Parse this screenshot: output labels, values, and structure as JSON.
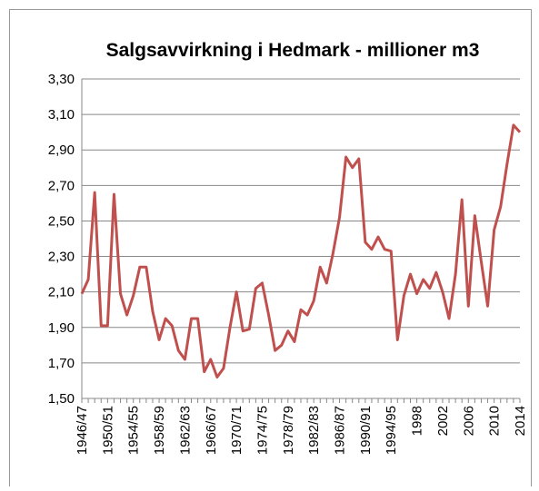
{
  "chart_data": {
    "type": "line",
    "title": "Salgsavvirkning i Hedmark  - millioner m3",
    "categories": [
      "1946/47",
      null,
      null,
      null,
      "1950/51",
      null,
      null,
      null,
      "1954/55",
      null,
      null,
      null,
      "1958/59",
      null,
      null,
      null,
      "1962/63",
      null,
      null,
      null,
      "1966/67",
      null,
      null,
      null,
      "1970/71",
      null,
      null,
      null,
      "1974/75",
      null,
      null,
      null,
      "1978/79",
      null,
      null,
      null,
      "1982/83",
      null,
      null,
      null,
      "1986/87",
      null,
      null,
      null,
      "1990/91",
      null,
      null,
      null,
      "1994/95",
      null,
      null,
      null,
      "1998",
      null,
      null,
      null,
      "2002",
      null,
      null,
      null,
      "2006",
      null,
      null,
      null,
      "2010",
      null,
      null,
      null,
      "2014"
    ],
    "series": [
      {
        "color": "#c0504d",
        "values": [
          2.09,
          2.17,
          2.66,
          1.91,
          1.91,
          2.65,
          2.09,
          1.97,
          2.08,
          2.24,
          2.24,
          1.99,
          1.83,
          1.95,
          1.91,
          1.77,
          1.72,
          1.95,
          1.95,
          1.65,
          1.72,
          1.62,
          1.67,
          1.9,
          2.1,
          1.88,
          1.89,
          2.12,
          2.15,
          1.97,
          1.77,
          1.8,
          1.88,
          1.82,
          2.0,
          1.97,
          2.05,
          2.24,
          2.15,
          2.32,
          2.52,
          2.86,
          2.8,
          2.85,
          2.38,
          2.34,
          2.41,
          2.34,
          2.33,
          1.83,
          2.08,
          2.2,
          2.09,
          2.17,
          2.12,
          2.21,
          2.1,
          1.95,
          2.2,
          2.62,
          2.02,
          2.53,
          2.27,
          2.02,
          2.45,
          2.58,
          2.82,
          3.04,
          3.0
        ]
      }
    ],
    "ylim": [
      1.5,
      3.3
    ],
    "yticks": [
      {
        "value": 1.5,
        "label": "1,50"
      },
      {
        "value": 1.7,
        "label": "1,70"
      },
      {
        "value": 1.9,
        "label": "1,90"
      },
      {
        "value": 2.1,
        "label": "2,10"
      },
      {
        "value": 2.3,
        "label": "2,30"
      },
      {
        "value": 2.5,
        "label": "2,50"
      },
      {
        "value": 2.7,
        "label": "2,70"
      },
      {
        "value": 2.9,
        "label": "2,90"
      },
      {
        "value": 3.1,
        "label": "3,10"
      },
      {
        "value": 3.3,
        "label": "3,30"
      }
    ],
    "grid": true
  }
}
